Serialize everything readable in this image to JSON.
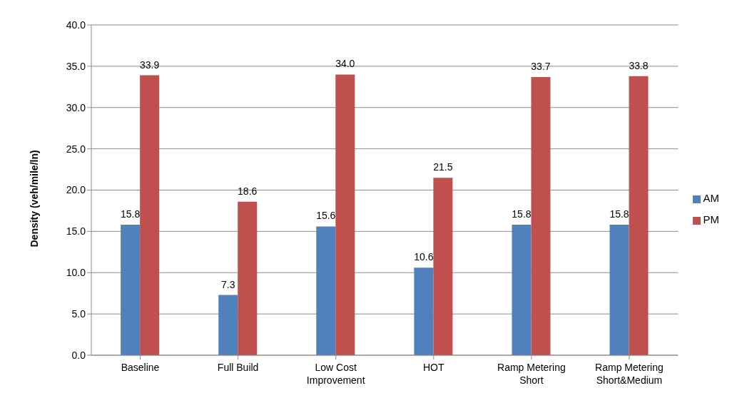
{
  "chart_data": {
    "type": "bar",
    "ylabel": "Density (veh/mile/ln)",
    "categories": [
      "Baseline",
      "Full Build",
      "Low Cost Improvement",
      "HOT",
      "Ramp Metering Short",
      "Ramp Metering Short&Medium"
    ],
    "series": [
      {
        "name": "AM",
        "color": "#4f81bd",
        "values": [
          15.8,
          7.3,
          15.6,
          10.6,
          15.8,
          15.8
        ],
        "value_labels": [
          "15.8",
          "7.3",
          "15.6",
          "10.6",
          "15.8",
          "15.8"
        ]
      },
      {
        "name": "PM",
        "color": "#c0504d",
        "values": [
          33.9,
          18.6,
          34.0,
          21.5,
          33.7,
          33.8
        ],
        "value_labels": [
          "33.9",
          "18.6",
          "34.0",
          "21.5",
          "33.7",
          "33.8"
        ]
      }
    ],
    "ylim": [
      0,
      40
    ],
    "yticks": [
      {
        "value": 0,
        "label": "0.0"
      },
      {
        "value": 5,
        "label": "5.0"
      },
      {
        "value": 10,
        "label": "10.0"
      },
      {
        "value": 15,
        "label": "15.0"
      },
      {
        "value": 20,
        "label": "20.0"
      },
      {
        "value": 25,
        "label": "25.0"
      },
      {
        "value": 30,
        "label": "30.0"
      },
      {
        "value": 35,
        "label": "35.0"
      },
      {
        "value": 40,
        "label": "40.0"
      }
    ],
    "grid": "y",
    "legend": "right"
  }
}
